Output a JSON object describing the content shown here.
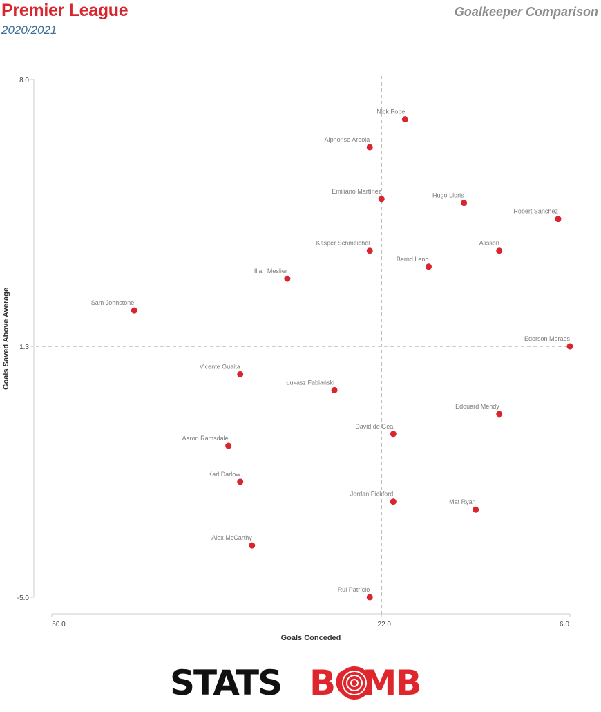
{
  "header": {
    "title": "Premier League",
    "season": "2020/2021",
    "comparison": "Goalkeeper Comparison"
  },
  "colors": {
    "title": "#d7262e",
    "season": "#3f6f96",
    "point": "#d7262e",
    "brand_red": "#e0262d"
  },
  "brand": {
    "left": "STATS",
    "right": "BOMB"
  },
  "chart_data": {
    "type": "scatter",
    "xlabel": "Goals Conceded",
    "ylabel": "Goals Saved Above Average",
    "x_reversed": true,
    "xlim": [
      50,
      6
    ],
    "ylim": [
      -5,
      8
    ],
    "x_ticks": [
      50,
      22,
      6
    ],
    "x_tick_labels": [
      "50.0",
      "22.0",
      "6.0"
    ],
    "y_ticks": [
      8,
      1.3,
      -5
    ],
    "y_tick_labels": [
      "8.0",
      "1.3",
      "-5.0"
    ],
    "reference_lines": {
      "x": 22,
      "y": 1.3
    },
    "grid": false,
    "points": [
      {
        "name": "Nick Pope",
        "x": 20,
        "y": 7.0
      },
      {
        "name": "Alphonse Areola",
        "x": 23,
        "y": 6.3
      },
      {
        "name": "Emiliano Martínez",
        "x": 22,
        "y": 5.0
      },
      {
        "name": "Hugo Lloris",
        "x": 15,
        "y": 4.9
      },
      {
        "name": "Robert Sanchez",
        "x": 7,
        "y": 4.5
      },
      {
        "name": "Kasper Schmeichel",
        "x": 23,
        "y": 3.7
      },
      {
        "name": "Alisson",
        "x": 12,
        "y": 3.7
      },
      {
        "name": "Bernd Leno",
        "x": 18,
        "y": 3.3
      },
      {
        "name": "Illan Meslier",
        "x": 30,
        "y": 3.0
      },
      {
        "name": "Sam Johnstone",
        "x": 43,
        "y": 2.2
      },
      {
        "name": "Ederson Moraes",
        "x": 6,
        "y": 1.3
      },
      {
        "name": "Vicente Guaita",
        "x": 34,
        "y": 0.6
      },
      {
        "name": "Łukasz Fabiański",
        "x": 26,
        "y": 0.2
      },
      {
        "name": "Edouard Mendy",
        "x": 12,
        "y": -0.4
      },
      {
        "name": "David de Gea",
        "x": 21,
        "y": -0.9
      },
      {
        "name": "Aaron Ramsdale",
        "x": 35,
        "y": -1.2
      },
      {
        "name": "Karl Darlow",
        "x": 34,
        "y": -2.1
      },
      {
        "name": "Jordan Pickford",
        "x": 21,
        "y": -2.6
      },
      {
        "name": "Mat Ryan",
        "x": 14,
        "y": -2.8
      },
      {
        "name": "Alex McCarthy",
        "x": 33,
        "y": -3.7
      },
      {
        "name": "Rui Patrício",
        "x": 23,
        "y": -5.0
      }
    ]
  }
}
